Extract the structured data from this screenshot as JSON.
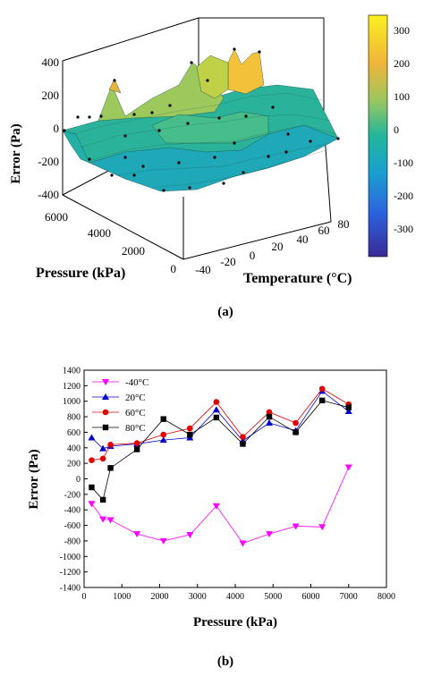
{
  "panel_a": {
    "caption": "(a)",
    "zlabel": "Error (Pa)",
    "xlabel": "Pressure (kPa)",
    "ylabel": "Temperature (°C)",
    "z_ticks": [
      "400",
      "200",
      "0",
      "-200",
      "-400"
    ],
    "p_ticks": [
      "6000",
      "4000",
      "2000",
      "0"
    ],
    "t_ticks": [
      "-40",
      "-20",
      "0",
      "20",
      "40",
      "60",
      "80"
    ],
    "colorbar_ticks": [
      "300",
      "200",
      "100",
      "0",
      "-100",
      "-200",
      "-300"
    ],
    "colorbar_colors": [
      "#fbef22",
      "#f2b63c",
      "#9ac75f",
      "#23b59c",
      "#1a9fd0",
      "#2a5fde",
      "#3a2a9a"
    ]
  },
  "chart_data": [
    {
      "type": "surface3d",
      "zlabel": "Error (Pa)",
      "xlabel": "Pressure (kPa)",
      "ylabel": "Temperature (°C)",
      "zlim": [
        -400,
        400
      ],
      "colorbar_range": [
        -350,
        350
      ]
    },
    {
      "type": "line",
      "caption": "(b)",
      "xlabel": "Pressure (kPa)",
      "ylabel": "Error (Pa)",
      "xlim": [
        0,
        8000
      ],
      "ylim": [
        -1400,
        1400
      ],
      "x_ticks": [
        "0",
        "1000",
        "2000",
        "3000",
        "4000",
        "5000",
        "6000",
        "7000",
        "8000"
      ],
      "y_ticks": [
        "1400",
        "1200",
        "1000",
        "800",
        "600",
        "400",
        "200",
        "0",
        "-200",
        "-400",
        "-600",
        "-800",
        "-1000",
        "-1200",
        "-1400"
      ],
      "legend_position": "top-left",
      "series": [
        {
          "name": "-40°C",
          "color": "#ff00ff",
          "marker": "triangle-down",
          "points": [
            [
              200,
              -320
            ],
            [
              500,
              -520
            ],
            [
              700,
              -530
            ],
            [
              1400,
              -710
            ],
            [
              2100,
              -800
            ],
            [
              2800,
              -720
            ],
            [
              3500,
              -350
            ],
            [
              4200,
              -830
            ],
            [
              4900,
              -710
            ],
            [
              5600,
              -610
            ],
            [
              6300,
              -620
            ],
            [
              7000,
              150
            ]
          ]
        },
        {
          "name": "20°C",
          "color": "#0000cc",
          "marker": "triangle-up",
          "points": [
            [
              200,
              530
            ],
            [
              500,
              390
            ],
            [
              700,
              420
            ],
            [
              1400,
              450
            ],
            [
              2100,
              500
            ],
            [
              2800,
              530
            ],
            [
              3500,
              890
            ],
            [
              4200,
              490
            ],
            [
              4900,
              720
            ],
            [
              5600,
              620
            ],
            [
              6300,
              1130
            ],
            [
              7000,
              870
            ]
          ]
        },
        {
          "name": "60°C",
          "color": "#e00000",
          "marker": "circle",
          "points": [
            [
              200,
              240
            ],
            [
              500,
              260
            ],
            [
              700,
              440
            ],
            [
              1400,
              460
            ],
            [
              2100,
              570
            ],
            [
              2800,
              650
            ],
            [
              3500,
              990
            ],
            [
              4200,
              540
            ],
            [
              4900,
              860
            ],
            [
              5600,
              720
            ],
            [
              6300,
              1160
            ],
            [
              7000,
              960
            ]
          ]
        },
        {
          "name": "80°C",
          "color": "#000000",
          "marker": "square",
          "points": [
            [
              200,
              -110
            ],
            [
              500,
              -270
            ],
            [
              700,
              140
            ],
            [
              1400,
              380
            ],
            [
              2100,
              770
            ],
            [
              2800,
              570
            ],
            [
              3500,
              790
            ],
            [
              4200,
              450
            ],
            [
              4900,
              800
            ],
            [
              5600,
              600
            ],
            [
              6300,
              1010
            ],
            [
              7000,
              920
            ]
          ]
        }
      ]
    }
  ]
}
